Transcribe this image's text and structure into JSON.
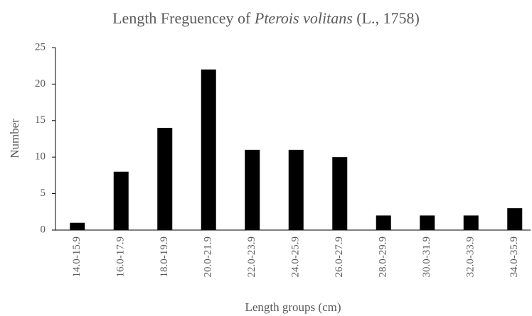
{
  "chart_data": {
    "type": "bar",
    "title": [
      "Length Freguencey of ",
      "Pterois volitans",
      " (L., 1758)"
    ],
    "x_label": "Length groups (cm)",
    "y_label": "Number",
    "categories": [
      "14.0-15.9",
      "16.0-17.9",
      "18.0-19.9",
      "20.0-21.9",
      "22.0-23.9",
      "24.0-25.9",
      "26.0-27.9",
      "28.0-29.9",
      "30.0-31.9",
      "32.0-33.9",
      "34.0-35.9"
    ],
    "values": [
      1,
      8,
      14,
      22,
      11,
      11,
      10,
      2,
      2,
      2,
      3
    ],
    "color": "#000000",
    "ylim": [
      0,
      25
    ],
    "yticks": [
      0,
      5,
      10,
      15,
      20,
      25
    ],
    "grid": false
  }
}
